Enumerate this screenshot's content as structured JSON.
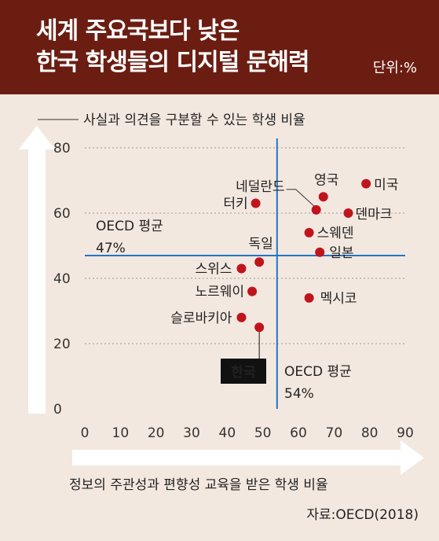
{
  "header": {
    "title_line1": "세계 주요국보다 낮은",
    "title_line2": "한국 학생들의 디지털 문해력",
    "unit": "단위:%"
  },
  "source": "자료:OECD(2018)",
  "chart_data": {
    "type": "scatter",
    "title": "세계 주요국보다 낮은 한국 학생들의 디지털 문해력",
    "ylabel": "사실과 의견을 구분할 수 있는 학생 비율",
    "xlabel": "정보의 주관성과 편향성 교육을 받은 학생 비율",
    "xlim": [
      0,
      90
    ],
    "ylim": [
      0,
      80
    ],
    "x_ticks": [
      "0",
      "10",
      "20",
      "30",
      "40",
      "50",
      "60",
      "70",
      "80",
      "90"
    ],
    "y_ticks": [
      "0",
      "20",
      "40",
      "60",
      "80"
    ],
    "grid": true,
    "points": [
      {
        "label": "한국",
        "x": 49,
        "y": 25,
        "highlight": true
      },
      {
        "label": "미국",
        "x": 79,
        "y": 69
      },
      {
        "label": "영국",
        "x": 67,
        "y": 65
      },
      {
        "label": "네덜란드",
        "x": 65,
        "y": 61
      },
      {
        "label": "덴마크",
        "x": 74,
        "y": 60
      },
      {
        "label": "터키",
        "x": 48,
        "y": 63
      },
      {
        "label": "스웨덴",
        "x": 63,
        "y": 54
      },
      {
        "label": "일본",
        "x": 66,
        "y": 48
      },
      {
        "label": "독일",
        "x": 49,
        "y": 45
      },
      {
        "label": "스위스",
        "x": 44,
        "y": 43
      },
      {
        "label": "노르웨이",
        "x": 47,
        "y": 36
      },
      {
        "label": "멕시코",
        "x": 63,
        "y": 34
      },
      {
        "label": "슬로바키아",
        "x": 44,
        "y": 28
      }
    ],
    "averages": {
      "x": {
        "label": "OECD 평균",
        "value": 54,
        "value_label": "54%"
      },
      "y": {
        "label": "OECD 평균",
        "value": 47,
        "value_label": "47%"
      }
    },
    "colors": {
      "point": "#c0141c",
      "avg_line": "#1f77c8",
      "avg_value": "#c0141c",
      "header_bg": "#6b1d12",
      "background": "#f3e8df",
      "highlight_box": "#111111"
    }
  }
}
